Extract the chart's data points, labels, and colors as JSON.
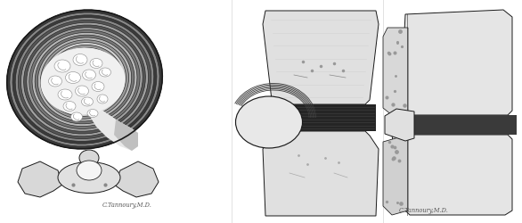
{
  "background_color": "#ffffff",
  "fig_width": 5.86,
  "fig_height": 2.51,
  "dpi": 100,
  "signature1": "C.Tannoury,M.D.",
  "signature2": "C.Tannoury,M.D.",
  "lc": "#1a1a1a",
  "lw": 0.7,
  "fill_white": "#ffffff",
  "fill_light": "#e8e8e8",
  "fill_light2": "#d4d4d4",
  "fill_medium": "#b0b0b0",
  "fill_dark": "#707070",
  "fill_very_dark": "#252525",
  "fill_black": "#111111"
}
